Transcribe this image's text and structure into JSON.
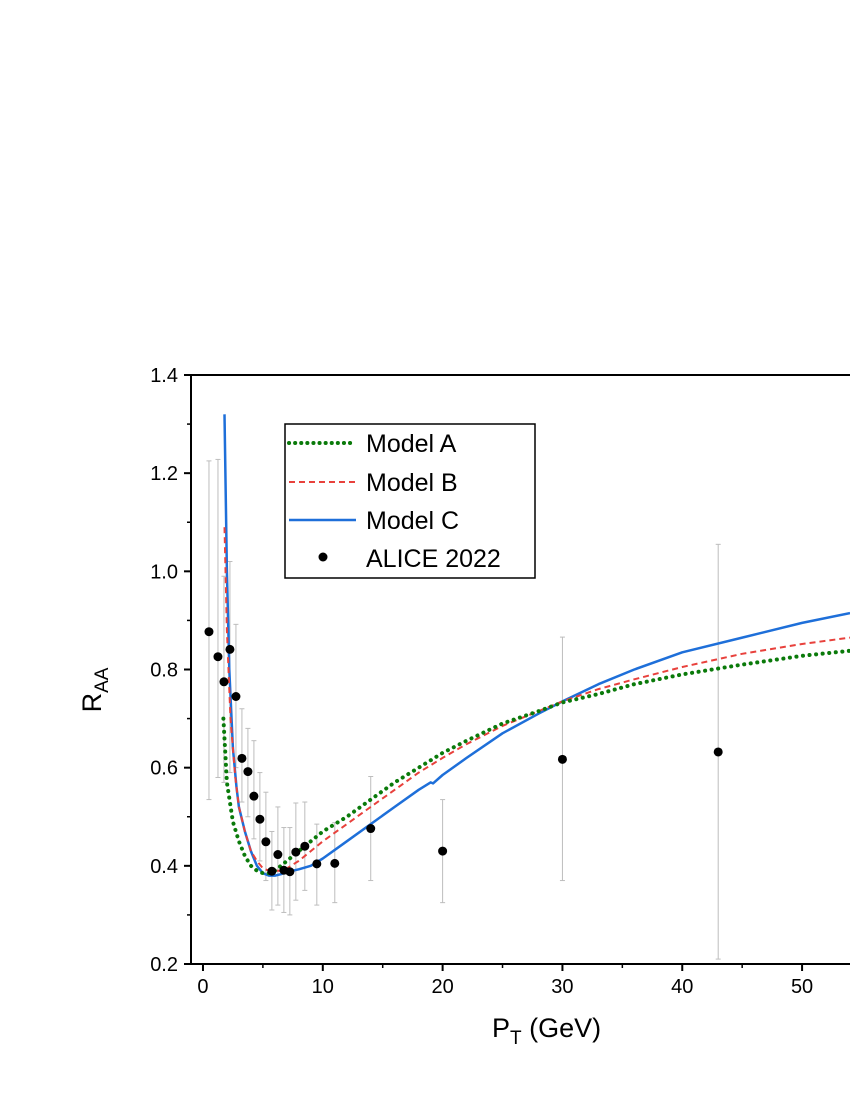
{
  "chart_data": {
    "type": "line",
    "title": "",
    "xlabel": {
      "main": "P",
      "sub": "T",
      "rest": " (GeV)"
    },
    "ylabel": {
      "main": "R",
      "sub": "AA"
    },
    "xlim": [
      -1,
      54
    ],
    "ylim": [
      0.2,
      1.4
    ],
    "x_ticks": [
      0,
      10,
      20,
      30,
      40,
      50
    ],
    "y_ticks": [
      0.2,
      0.4,
      0.6,
      0.8,
      1.0,
      1.2,
      1.4
    ],
    "y_tick_labels": [
      "0.2",
      "0.4",
      "0.6",
      "0.8",
      "1.0",
      "1.2",
      "1.4"
    ],
    "grid": false,
    "legend_position": "top-left",
    "series": [
      {
        "name": "Model A",
        "style": "dotted",
        "color": "#0a7a0a",
        "x": [
          1.7,
          2.0,
          2.5,
          3.0,
          3.5,
          4.0,
          4.5,
          5.0,
          5.5,
          6.0,
          6.5,
          7.0,
          8.0,
          9.0,
          10.0,
          12.0,
          14.0,
          16.0,
          18.0,
          20.0,
          22.0,
          25.0,
          28.0,
          30.0,
          33.0,
          36.0,
          40.0,
          45.0,
          50.0,
          54.0
        ],
        "y": [
          0.7,
          0.57,
          0.49,
          0.45,
          0.42,
          0.4,
          0.39,
          0.385,
          0.385,
          0.39,
          0.4,
          0.41,
          0.43,
          0.45,
          0.47,
          0.5,
          0.535,
          0.57,
          0.6,
          0.63,
          0.655,
          0.69,
          0.715,
          0.733,
          0.75,
          0.77,
          0.79,
          0.81,
          0.828,
          0.838
        ]
      },
      {
        "name": "Model B",
        "style": "dashed",
        "color": "#e8413c",
        "x": [
          1.8,
          2.0,
          2.3,
          2.7,
          3.0,
          3.5,
          4.0,
          4.5,
          5.0,
          5.5,
          6.0,
          6.5,
          7.0,
          8.0,
          9.0,
          10.0,
          12.0,
          14.0,
          16.0,
          18.0,
          20.0,
          22.0,
          25.0,
          28.0,
          30.0,
          33.0,
          36.0,
          40.0,
          45.0,
          50.0,
          54.0
        ],
        "y": [
          1.09,
          0.88,
          0.7,
          0.58,
          0.52,
          0.47,
          0.43,
          0.41,
          0.395,
          0.39,
          0.39,
          0.39,
          0.395,
          0.41,
          0.43,
          0.45,
          0.485,
          0.52,
          0.555,
          0.59,
          0.62,
          0.648,
          0.685,
          0.715,
          0.735,
          0.76,
          0.78,
          0.805,
          0.832,
          0.852,
          0.865
        ]
      },
      {
        "name": "Model C",
        "style": "solid",
        "color": "#1e6fd9",
        "x": [
          1.8,
          2.0,
          2.2,
          2.5,
          2.8,
          3.0,
          3.5,
          4.0,
          4.5,
          5.0,
          5.5,
          6.0,
          6.5,
          7.0,
          7.5,
          8.0,
          9.0,
          10.0,
          12.0,
          14.0,
          16.0,
          18.0,
          19.0,
          19.2,
          20.0,
          22.0,
          25.0,
          28.0,
          30.0,
          33.0,
          36.0,
          40.0,
          45.0,
          50.0,
          54.0
        ],
        "y": [
          1.32,
          1.0,
          0.8,
          0.64,
          0.56,
          0.52,
          0.47,
          0.43,
          0.4,
          0.385,
          0.38,
          0.38,
          0.383,
          0.388,
          0.39,
          0.393,
          0.4,
          0.415,
          0.45,
          0.485,
          0.52,
          0.555,
          0.57,
          0.568,
          0.585,
          0.62,
          0.67,
          0.71,
          0.735,
          0.77,
          0.8,
          0.835,
          0.865,
          0.895,
          0.915
        ]
      },
      {
        "name": "ALICE 2022",
        "style": "points",
        "color": "#000000",
        "x": [
          0.5,
          1.25,
          1.75,
          2.25,
          2.75,
          3.25,
          3.75,
          4.25,
          4.75,
          5.25,
          5.75,
          6.25,
          6.75,
          7.25,
          7.75,
          8.5,
          9.5,
          11.0,
          14.0,
          20.0,
          30.0,
          43.0
        ],
        "y": [
          0.877,
          0.826,
          0.775,
          0.841,
          0.745,
          0.619,
          0.592,
          0.542,
          0.495,
          0.449,
          0.389,
          0.423,
          0.391,
          0.388,
          0.428,
          0.44,
          0.404,
          0.405,
          0.476,
          0.43,
          0.617,
          0.632
        ],
        "err_low": [
          0.535,
          0.58,
          0.57,
          0.59,
          0.6,
          0.53,
          0.5,
          0.455,
          0.41,
          0.37,
          0.31,
          0.32,
          0.305,
          0.3,
          0.33,
          0.35,
          0.32,
          0.325,
          0.37,
          0.325,
          0.37,
          0.21
        ],
        "err_high": [
          1.225,
          1.228,
          0.99,
          1.02,
          0.892,
          0.72,
          0.68,
          0.655,
          0.59,
          0.55,
          0.47,
          0.52,
          0.478,
          0.478,
          0.528,
          0.53,
          0.485,
          0.488,
          0.582,
          0.535,
          0.866,
          1.055
        ]
      }
    ]
  }
}
